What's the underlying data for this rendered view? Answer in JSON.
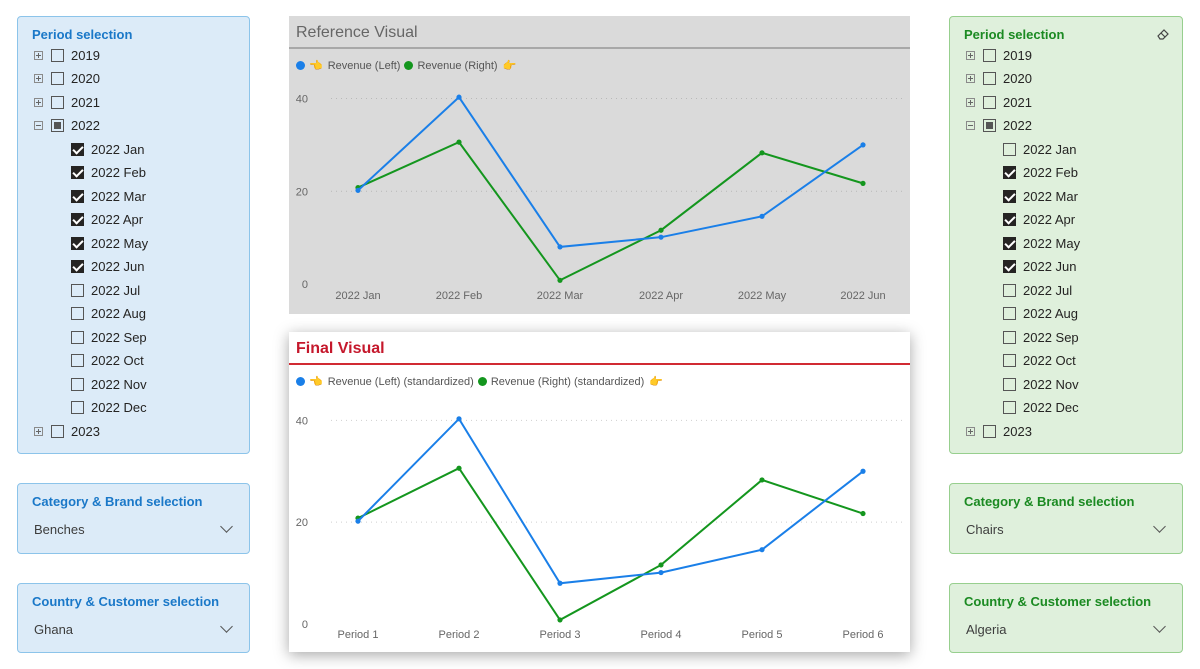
{
  "left_panel": {
    "period_title": "Period selection",
    "period_items": [
      {
        "label": "2019",
        "level": 0,
        "expander": "plus",
        "state": "unchecked"
      },
      {
        "label": "2020",
        "level": 0,
        "expander": "plus",
        "state": "unchecked"
      },
      {
        "label": "2021",
        "level": 0,
        "expander": "plus",
        "state": "unchecked"
      },
      {
        "label": "2022",
        "level": 0,
        "expander": "minus",
        "state": "partial"
      },
      {
        "label": "2022 Jan",
        "level": 1,
        "state": "checked"
      },
      {
        "label": "2022 Feb",
        "level": 1,
        "state": "checked"
      },
      {
        "label": "2022 Mar",
        "level": 1,
        "state": "checked"
      },
      {
        "label": "2022 Apr",
        "level": 1,
        "state": "checked"
      },
      {
        "label": "2022 May",
        "level": 1,
        "state": "checked"
      },
      {
        "label": "2022 Jun",
        "level": 1,
        "state": "checked"
      },
      {
        "label": "2022 Jul",
        "level": 1,
        "state": "unchecked"
      },
      {
        "label": "2022 Aug",
        "level": 1,
        "state": "unchecked"
      },
      {
        "label": "2022 Sep",
        "level": 1,
        "state": "unchecked"
      },
      {
        "label": "2022 Oct",
        "level": 1,
        "state": "unchecked"
      },
      {
        "label": "2022 Nov",
        "level": 1,
        "state": "unchecked"
      },
      {
        "label": "2022 Dec",
        "level": 1,
        "state": "unchecked"
      },
      {
        "label": "2023",
        "level": 0,
        "expander": "plus",
        "state": "unchecked"
      }
    ],
    "category_title": "Category & Brand selection",
    "category_value": "Benches",
    "country_title": "Country & Customer selection",
    "country_value": "Ghana"
  },
  "right_panel": {
    "period_title": "Period selection",
    "period_items": [
      {
        "label": "2019",
        "level": 0,
        "expander": "plus",
        "state": "unchecked"
      },
      {
        "label": "2020",
        "level": 0,
        "expander": "plus",
        "state": "unchecked"
      },
      {
        "label": "2021",
        "level": 0,
        "expander": "plus",
        "state": "unchecked"
      },
      {
        "label": "2022",
        "level": 0,
        "expander": "minus",
        "state": "partial"
      },
      {
        "label": "2022 Jan",
        "level": 1,
        "state": "unchecked"
      },
      {
        "label": "2022 Feb",
        "level": 1,
        "state": "checked"
      },
      {
        "label": "2022 Mar",
        "level": 1,
        "state": "checked"
      },
      {
        "label": "2022 Apr",
        "level": 1,
        "state": "checked"
      },
      {
        "label": "2022 May",
        "level": 1,
        "state": "checked"
      },
      {
        "label": "2022 Jun",
        "level": 1,
        "state": "checked"
      },
      {
        "label": "2022 Jul",
        "level": 1,
        "state": "unchecked"
      },
      {
        "label": "2022 Aug",
        "level": 1,
        "state": "unchecked"
      },
      {
        "label": "2022 Sep",
        "level": 1,
        "state": "unchecked"
      },
      {
        "label": "2022 Oct",
        "level": 1,
        "state": "unchecked"
      },
      {
        "label": "2022 Nov",
        "level": 1,
        "state": "unchecked"
      },
      {
        "label": "2022 Dec",
        "level": 1,
        "state": "unchecked"
      },
      {
        "label": "2023",
        "level": 0,
        "expander": "plus",
        "state": "unchecked"
      }
    ],
    "clear_icon": "eraser-icon",
    "category_title": "Category & Brand selection",
    "category_value": "Chairs",
    "country_title": "Country & Customer selection",
    "country_value": "Algeria"
  },
  "colors": {
    "left_series": "#1a7fe8",
    "right_series": "#14961e"
  },
  "chart_data": [
    {
      "type": "line",
      "title": "Reference Visual",
      "categories": [
        "2022 Jan",
        "2022 Feb",
        "2022 Mar",
        "2022 Apr",
        "2022 May",
        "2022 Jun"
      ],
      "series": [
        {
          "name": "Revenue (Left)",
          "values": [
            20.2,
            40.3,
            8.0,
            10.1,
            14.6,
            30.0
          ]
        },
        {
          "name": "Revenue (Right)",
          "values": [
            20.8,
            30.6,
            0.8,
            11.6,
            28.3,
            21.7
          ]
        }
      ],
      "legend_markers": [
        "👈",
        "👉"
      ],
      "yticks": [
        0,
        20,
        40
      ],
      "ylim": [
        0,
        44
      ],
      "grid": true,
      "legend_position": "top-left"
    },
    {
      "type": "line",
      "title": "Final Visual",
      "categories": [
        "Period 1",
        "Period 2",
        "Period 3",
        "Period 4",
        "Period 5",
        "Period 6"
      ],
      "series": [
        {
          "name": "Revenue (Left) (standardized)",
          "values": [
            20.2,
            40.3,
            8.0,
            10.1,
            14.6,
            30.0
          ]
        },
        {
          "name": "Revenue (Right) (standardized)",
          "values": [
            20.8,
            30.6,
            0.8,
            11.6,
            28.3,
            21.7
          ]
        }
      ],
      "legend_markers": [
        "👈",
        "👉"
      ],
      "yticks": [
        0,
        20,
        40
      ],
      "ylim": [
        0,
        44
      ],
      "grid": true,
      "legend_position": "top-left"
    }
  ]
}
